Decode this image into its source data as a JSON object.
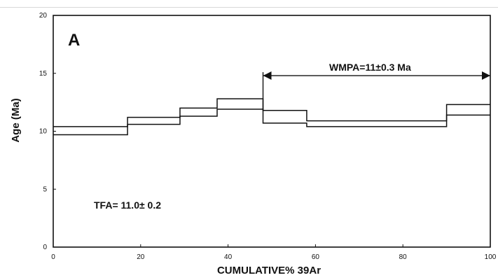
{
  "chart_data": {
    "type": "line",
    "panel_label": "A",
    "xlabel": "CUMULATIVE% 39Ar",
    "ylabel": "Age (Ma)",
    "xlim": [
      0,
      100
    ],
    "ylim": [
      0,
      20
    ],
    "x_ticks": [
      0,
      20,
      40,
      60,
      80,
      100
    ],
    "x_tick_labels": [
      "0",
      "20",
      "40",
      "60",
      "80",
      "100"
    ],
    "y_ticks": [
      0,
      5,
      10,
      15,
      20
    ],
    "y_tick_labels": [
      "0",
      "5",
      "10",
      "15",
      "20"
    ],
    "grid": false,
    "steps": [
      {
        "x_start": 0,
        "x_end": 17,
        "age_low": 9.7,
        "age_high": 10.4
      },
      {
        "x_start": 17,
        "x_end": 29,
        "age_low": 10.6,
        "age_high": 11.2
      },
      {
        "x_start": 29,
        "x_end": 37.5,
        "age_low": 11.3,
        "age_high": 12.0
      },
      {
        "x_start": 37.5,
        "x_end": 48,
        "age_low": 11.9,
        "age_high": 12.8
      },
      {
        "x_start": 48,
        "x_end": 58,
        "age_low": 10.7,
        "age_high": 11.8
      },
      {
        "x_start": 58,
        "x_end": 90,
        "age_low": 10.4,
        "age_high": 10.9
      },
      {
        "x_start": 90,
        "x_end": 100,
        "age_low": 11.4,
        "age_high": 12.3
      }
    ],
    "annotations": {
      "wmpa_text": "WMPA=11±0.3 Ma",
      "wmpa_x_start": 48,
      "wmpa_x_end": 100,
      "wmpa_y": 14.8,
      "tfa_text": "TFA= 11.0±  0.2"
    }
  }
}
